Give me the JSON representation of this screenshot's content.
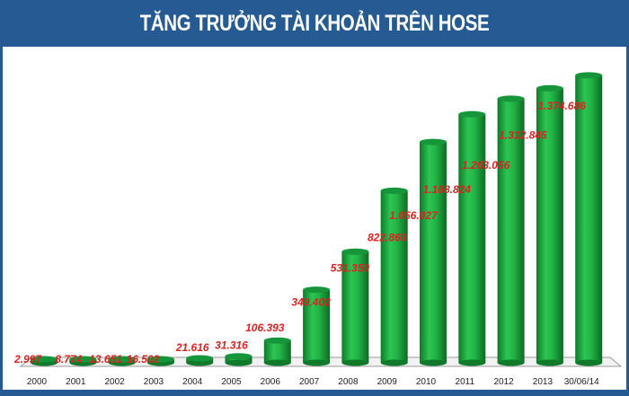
{
  "chart_data": {
    "type": "bar",
    "title": "TĂNG TRƯỞNG TÀI KHOẢN TRÊN HOSE",
    "xlabel": "",
    "ylabel": "",
    "categories": [
      "2000",
      "2001",
      "2002",
      "2003",
      "2004",
      "2005",
      "2006",
      "2007",
      "2008",
      "2009",
      "2010",
      "2011",
      "2012",
      "2013",
      "30/06/14"
    ],
    "values": [
      2997,
      8774,
      13651,
      16502,
      21616,
      31316,
      106393,
      349402,
      531350,
      822869,
      1056027,
      1188824,
      1263056,
      1312845,
      1374686
    ],
    "data_labels": [
      "2.997",
      "8.774",
      "13.651",
      "16.502",
      "21.616",
      "31.316",
      "106.393",
      "349.402",
      "531.350",
      "822.869",
      "1.056.027",
      "1.188.824",
      "1.263.056",
      "1.312.845",
      "1.374.686"
    ],
    "ylim": [
      0,
      1400000
    ],
    "grid": false,
    "legend": "none",
    "colors": {
      "bar": "#1fa940",
      "label": "#e02020",
      "title_bg": "#255a92"
    }
  }
}
